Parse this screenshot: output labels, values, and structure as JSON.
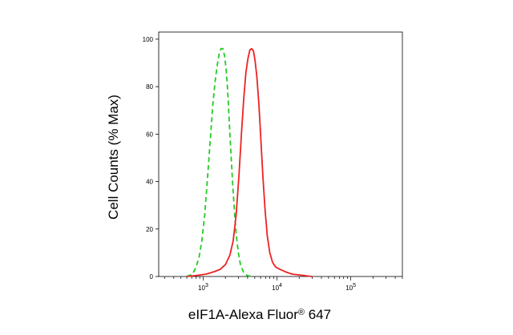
{
  "chart_data": {
    "type": "line",
    "xlabel": "eIF1A-Alexa Fluor",
    "xlabel_mark": "®",
    "xlabel_suffix": " 647",
    "ylabel": "Cell Counts (% Max)",
    "x_scale": "log",
    "xlim": [
      250,
      500000
    ],
    "ylim": [
      0,
      103
    ],
    "grid": false,
    "y_ticks": [
      {
        "value": 0,
        "label": "0"
      },
      {
        "value": 20,
        "label": "20"
      },
      {
        "value": 40,
        "label": "40"
      },
      {
        "value": 60,
        "label": "60"
      },
      {
        "value": 80,
        "label": "80"
      },
      {
        "value": 100,
        "label": "100"
      }
    ],
    "x_ticks": [
      {
        "value": 1000,
        "base": "10",
        "exp": "3"
      },
      {
        "value": 10000,
        "base": "10",
        "exp": "4"
      },
      {
        "value": 100000,
        "base": "10",
        "exp": "5"
      }
    ],
    "series": [
      {
        "color": "#22cc22",
        "style": "dashed",
        "points": [
          [
            600,
            0
          ],
          [
            720,
            1
          ],
          [
            800,
            4
          ],
          [
            880,
            8
          ],
          [
            960,
            15
          ],
          [
            1050,
            26
          ],
          [
            1150,
            42
          ],
          [
            1250,
            58
          ],
          [
            1350,
            72
          ],
          [
            1450,
            82
          ],
          [
            1550,
            89
          ],
          [
            1650,
            94
          ],
          [
            1750,
            96
          ],
          [
            1850,
            96
          ],
          [
            1950,
            93
          ],
          [
            2050,
            87
          ],
          [
            2150,
            78
          ],
          [
            2250,
            66
          ],
          [
            2380,
            52
          ],
          [
            2500,
            40
          ],
          [
            2650,
            28
          ],
          [
            2800,
            18
          ],
          [
            3000,
            10
          ],
          [
            3200,
            5
          ],
          [
            3500,
            2
          ],
          [
            3900,
            0.5
          ],
          [
            4500,
            0
          ]
        ]
      },
      {
        "color": "#ee2222",
        "style": "solid",
        "points": [
          [
            600,
            0
          ],
          [
            850,
            0.5
          ],
          [
            1100,
            1
          ],
          [
            1400,
            2
          ],
          [
            1700,
            3
          ],
          [
            2000,
            5
          ],
          [
            2300,
            9
          ],
          [
            2550,
            15
          ],
          [
            2800,
            26
          ],
          [
            3050,
            42
          ],
          [
            3300,
            60
          ],
          [
            3550,
            75
          ],
          [
            3800,
            86
          ],
          [
            4050,
            92
          ],
          [
            4300,
            95.5
          ],
          [
            4550,
            96
          ],
          [
            4800,
            95
          ],
          [
            5050,
            91
          ],
          [
            5350,
            84
          ],
          [
            5700,
            72
          ],
          [
            6050,
            58
          ],
          [
            6450,
            42
          ],
          [
            6900,
            28
          ],
          [
            7400,
            17
          ],
          [
            8000,
            10
          ],
          [
            8700,
            6
          ],
          [
            9600,
            4
          ],
          [
            11000,
            3
          ],
          [
            13000,
            2
          ],
          [
            16000,
            1
          ],
          [
            22000,
            0.5
          ],
          [
            30000,
            0
          ]
        ]
      }
    ]
  }
}
